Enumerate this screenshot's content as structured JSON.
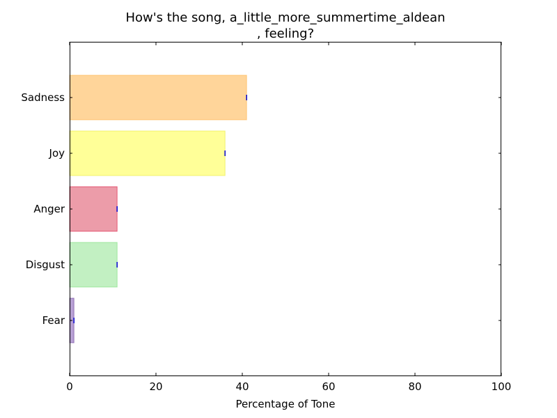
{
  "chart_data": {
    "type": "bar",
    "orientation": "horizontal",
    "title_lines": [
      "How's the song, a_little_more_summertime_aldean",
      ", feeling?"
    ],
    "xlabel": "Percentage of Tone",
    "ylabel": "",
    "xlim": [
      0,
      100
    ],
    "xticks": [
      0,
      20,
      40,
      60,
      80,
      100
    ],
    "grid": false,
    "categories": [
      "Sadness",
      "Joy",
      "Anger",
      "Disgust",
      "Fear"
    ],
    "values": [
      41,
      36,
      11,
      11,
      1
    ],
    "colors": [
      "#ffb347",
      "#ffff44",
      "#dc4a63",
      "#90e490",
      "#7b52ae"
    ],
    "edge_colors": [
      "#ffb347",
      "#e8e83a",
      "#dc143c",
      "#77dd77",
      "#6a3d9a"
    ],
    "error_marker_color": "#0000cc"
  }
}
